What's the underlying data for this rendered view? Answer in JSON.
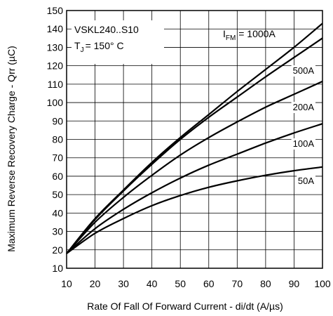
{
  "chart_data": {
    "type": "line",
    "title": "",
    "xlabel": "Rate Of Fall Of Forward Current - di/dt (A/µs)",
    "ylabel": "Maximum Reverse Recovery Charge - Qrr (µC)",
    "xlim": [
      10,
      100
    ],
    "ylim": [
      10,
      150
    ],
    "x_ticks": [
      10,
      20,
      30,
      40,
      50,
      60,
      70,
      80,
      90,
      100
    ],
    "y_ticks": [
      10,
      20,
      30,
      40,
      50,
      60,
      70,
      80,
      90,
      100,
      110,
      120,
      130,
      140,
      150
    ],
    "grid": true,
    "annotations": {
      "device": "VSKL240..S10",
      "temp_main": "T",
      "temp_sub": "J",
      "temp_rest": "= 150° C",
      "ifm_main": "I",
      "ifm_sub": "FM",
      "ifm_rest": " = 1000A"
    },
    "series": [
      {
        "label": "1000A",
        "x": [
          10,
          20,
          30,
          40,
          50,
          60,
          70,
          80,
          90,
          100
        ],
        "values": [
          18,
          37,
          52.5,
          67.5,
          81,
          93.5,
          106,
          118,
          130,
          143
        ]
      },
      {
        "label": "500A",
        "x": [
          10,
          20,
          30,
          40,
          50,
          60,
          70,
          80,
          90,
          100
        ],
        "values": [
          18,
          36.5,
          52,
          66.5,
          80,
          92,
          103,
          114,
          124.5,
          135
        ]
      },
      {
        "label": "200A",
        "x": [
          10,
          20,
          30,
          40,
          50,
          60,
          70,
          80,
          90,
          100
        ],
        "values": [
          18,
          35,
          48.5,
          60.5,
          71.5,
          81,
          89.5,
          97.5,
          104.5,
          111.5
        ]
      },
      {
        "label": "100A",
        "x": [
          10,
          20,
          30,
          40,
          50,
          60,
          70,
          80,
          90,
          100
        ],
        "values": [
          18,
          31.5,
          42,
          51,
          59,
          66,
          72,
          78,
          83.5,
          88.5
        ]
      },
      {
        "label": "50A",
        "x": [
          10,
          20,
          30,
          40,
          50,
          60,
          70,
          80,
          90,
          100
        ],
        "values": [
          18,
          29,
          37,
          44,
          49.5,
          54,
          57.5,
          60.5,
          63,
          65
        ]
      }
    ]
  }
}
